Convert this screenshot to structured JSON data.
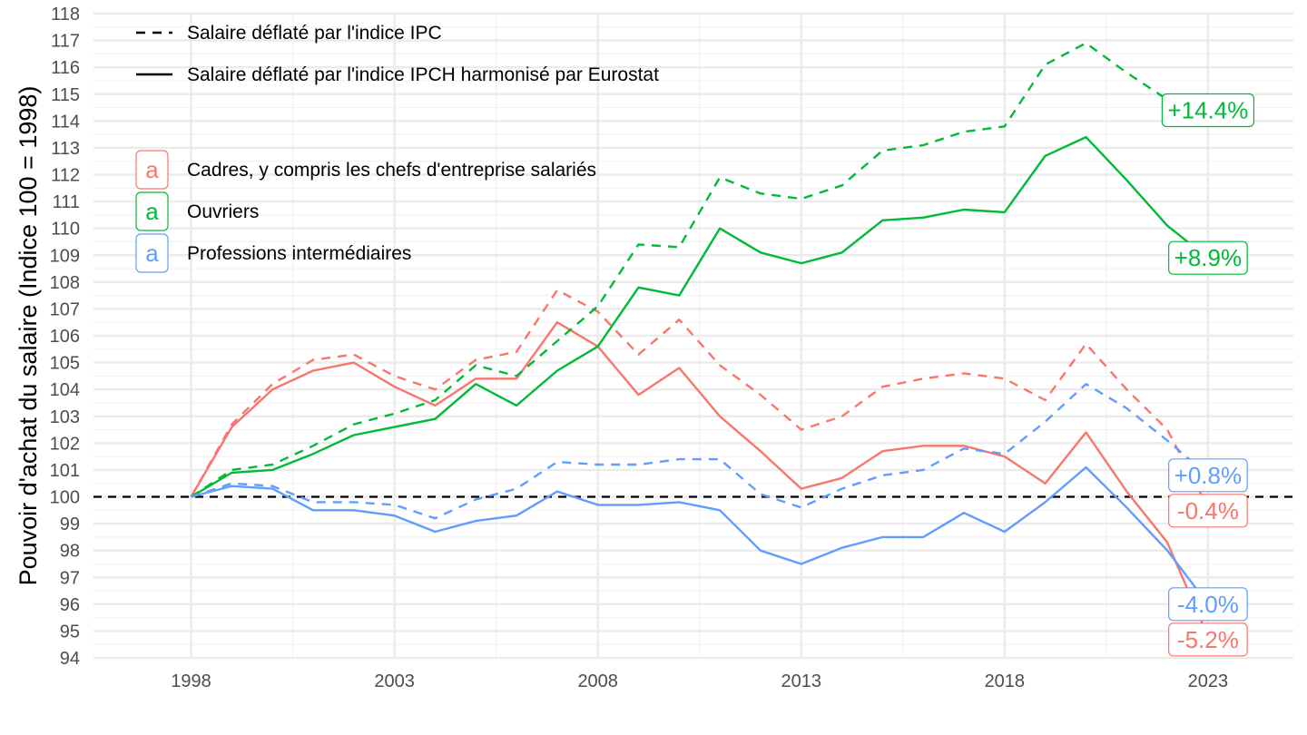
{
  "chart_data": {
    "type": "line",
    "title": "",
    "xlabel": "",
    "ylabel": "Pouvoir d'achat du salaire (Indice 100 = 1998)",
    "xlim": [
      1995.6,
      2025.1
    ],
    "ylim": [
      94,
      118
    ],
    "x_ticks": [
      1998,
      2003,
      2008,
      2013,
      2018,
      2023
    ],
    "y_ticks": [
      94,
      95,
      96,
      97,
      98,
      99,
      100,
      101,
      102,
      103,
      104,
      105,
      106,
      107,
      108,
      109,
      110,
      111,
      112,
      113,
      114,
      115,
      116,
      117,
      118
    ],
    "reference_line": {
      "y": 100,
      "style": "dashed",
      "color": "#000000"
    },
    "grid": true,
    "legend_linetype": [
      {
        "label": "Salaire déflaté par l'indice IPC",
        "style": "dashed"
      },
      {
        "label": "Salaire déflaté par l'indice IPCH harmonisé par Eurostat",
        "style": "solid"
      }
    ],
    "legend_color": [
      {
        "label": "Cadres, y compris les chefs d'entreprise salariés",
        "color": "#F8766D",
        "key": "a"
      },
      {
        "label": "Ouvriers",
        "color": "#00BA38",
        "key": "a"
      },
      {
        "label": "Professions intermédiaires",
        "color": "#619CFF",
        "key": "a"
      }
    ],
    "x": [
      1998,
      1999,
      2000,
      2001,
      2002,
      2003,
      2004,
      2005,
      2006,
      2007,
      2008,
      2009,
      2010,
      2011,
      2012,
      2013,
      2014,
      2015,
      2016,
      2017,
      2018,
      2019,
      2020,
      2021,
      2022,
      2023
    ],
    "series": [
      {
        "name": "Cadres, y compris les chefs d'entreprise salariés",
        "deflator": "IPC",
        "style": "dashed",
        "color": "#F8766D",
        "values": [
          100,
          102.7,
          104.2,
          105.1,
          105.3,
          104.5,
          104.0,
          105.1,
          105.4,
          107.7,
          106.9,
          105.3,
          106.6,
          104.9,
          103.8,
          102.5,
          103.0,
          104.1,
          104.4,
          104.6,
          104.4,
          103.6,
          105.7,
          104.0,
          102.5,
          99.6
        ]
      },
      {
        "name": "Cadres, y compris les chefs d'entreprise salariés",
        "deflator": "IPCH",
        "style": "solid",
        "color": "#F8766D",
        "values": [
          100,
          102.6,
          104.0,
          104.7,
          105.0,
          104.1,
          103.4,
          104.4,
          104.4,
          106.5,
          105.6,
          103.8,
          104.8,
          103.0,
          101.7,
          100.3,
          100.7,
          101.7,
          101.9,
          101.9,
          101.5,
          100.5,
          102.4,
          100.2,
          98.3,
          94.8
        ]
      },
      {
        "name": "Ouvriers",
        "deflator": "IPC",
        "style": "dashed",
        "color": "#00BA38",
        "values": [
          100,
          101.0,
          101.2,
          101.9,
          102.7,
          103.1,
          103.6,
          104.9,
          104.5,
          105.8,
          107.1,
          109.4,
          109.3,
          111.9,
          111.3,
          111.1,
          111.6,
          112.9,
          113.1,
          113.6,
          113.8,
          116.1,
          116.9,
          115.8,
          114.8,
          114.4
        ]
      },
      {
        "name": "Ouvriers",
        "deflator": "IPCH",
        "style": "solid",
        "color": "#00BA38",
        "values": [
          100,
          100.9,
          101.0,
          101.6,
          102.3,
          102.6,
          102.9,
          104.2,
          103.4,
          104.7,
          105.6,
          107.8,
          107.5,
          110.0,
          109.1,
          108.7,
          109.1,
          110.3,
          110.4,
          110.7,
          110.6,
          112.7,
          113.4,
          111.8,
          110.1,
          108.9
        ]
      },
      {
        "name": "Professions intermédiaires",
        "deflator": "IPC",
        "style": "dashed",
        "color": "#619CFF",
        "values": [
          100,
          100.5,
          100.4,
          99.8,
          99.8,
          99.7,
          99.2,
          99.9,
          100.3,
          101.3,
          101.2,
          101.2,
          101.4,
          101.4,
          100.1,
          99.6,
          100.3,
          100.8,
          101.0,
          101.8,
          101.6,
          102.8,
          104.2,
          103.3,
          102.1,
          100.8
        ]
      },
      {
        "name": "Professions intermédiaires",
        "deflator": "IPCH",
        "style": "solid",
        "color": "#619CFF",
        "values": [
          100,
          100.4,
          100.3,
          99.5,
          99.5,
          99.3,
          98.7,
          99.1,
          99.3,
          100.2,
          99.7,
          99.7,
          99.8,
          99.5,
          98.0,
          97.5,
          98.1,
          98.5,
          98.5,
          99.4,
          98.7,
          99.8,
          101.1,
          99.6,
          98.0,
          96.0
        ]
      }
    ],
    "end_labels": [
      {
        "text": "+14.4%",
        "color": "#00BA38",
        "x": 2023,
        "y": 114.4
      },
      {
        "text": "+8.9%",
        "color": "#00BA38",
        "x": 2023,
        "y": 108.9
      },
      {
        "text": "+0.8%",
        "color": "#619CFF",
        "x": 2023,
        "y": 100.8
      },
      {
        "text": "-0.4%",
        "color": "#F8766D",
        "x": 2023,
        "y": 99.6
      },
      {
        "text": "-4.0%",
        "color": "#619CFF",
        "x": 2023,
        "y": 96.0
      },
      {
        "text": "-5.2%",
        "color": "#F8766D",
        "x": 2023,
        "y": 94.8
      }
    ]
  }
}
